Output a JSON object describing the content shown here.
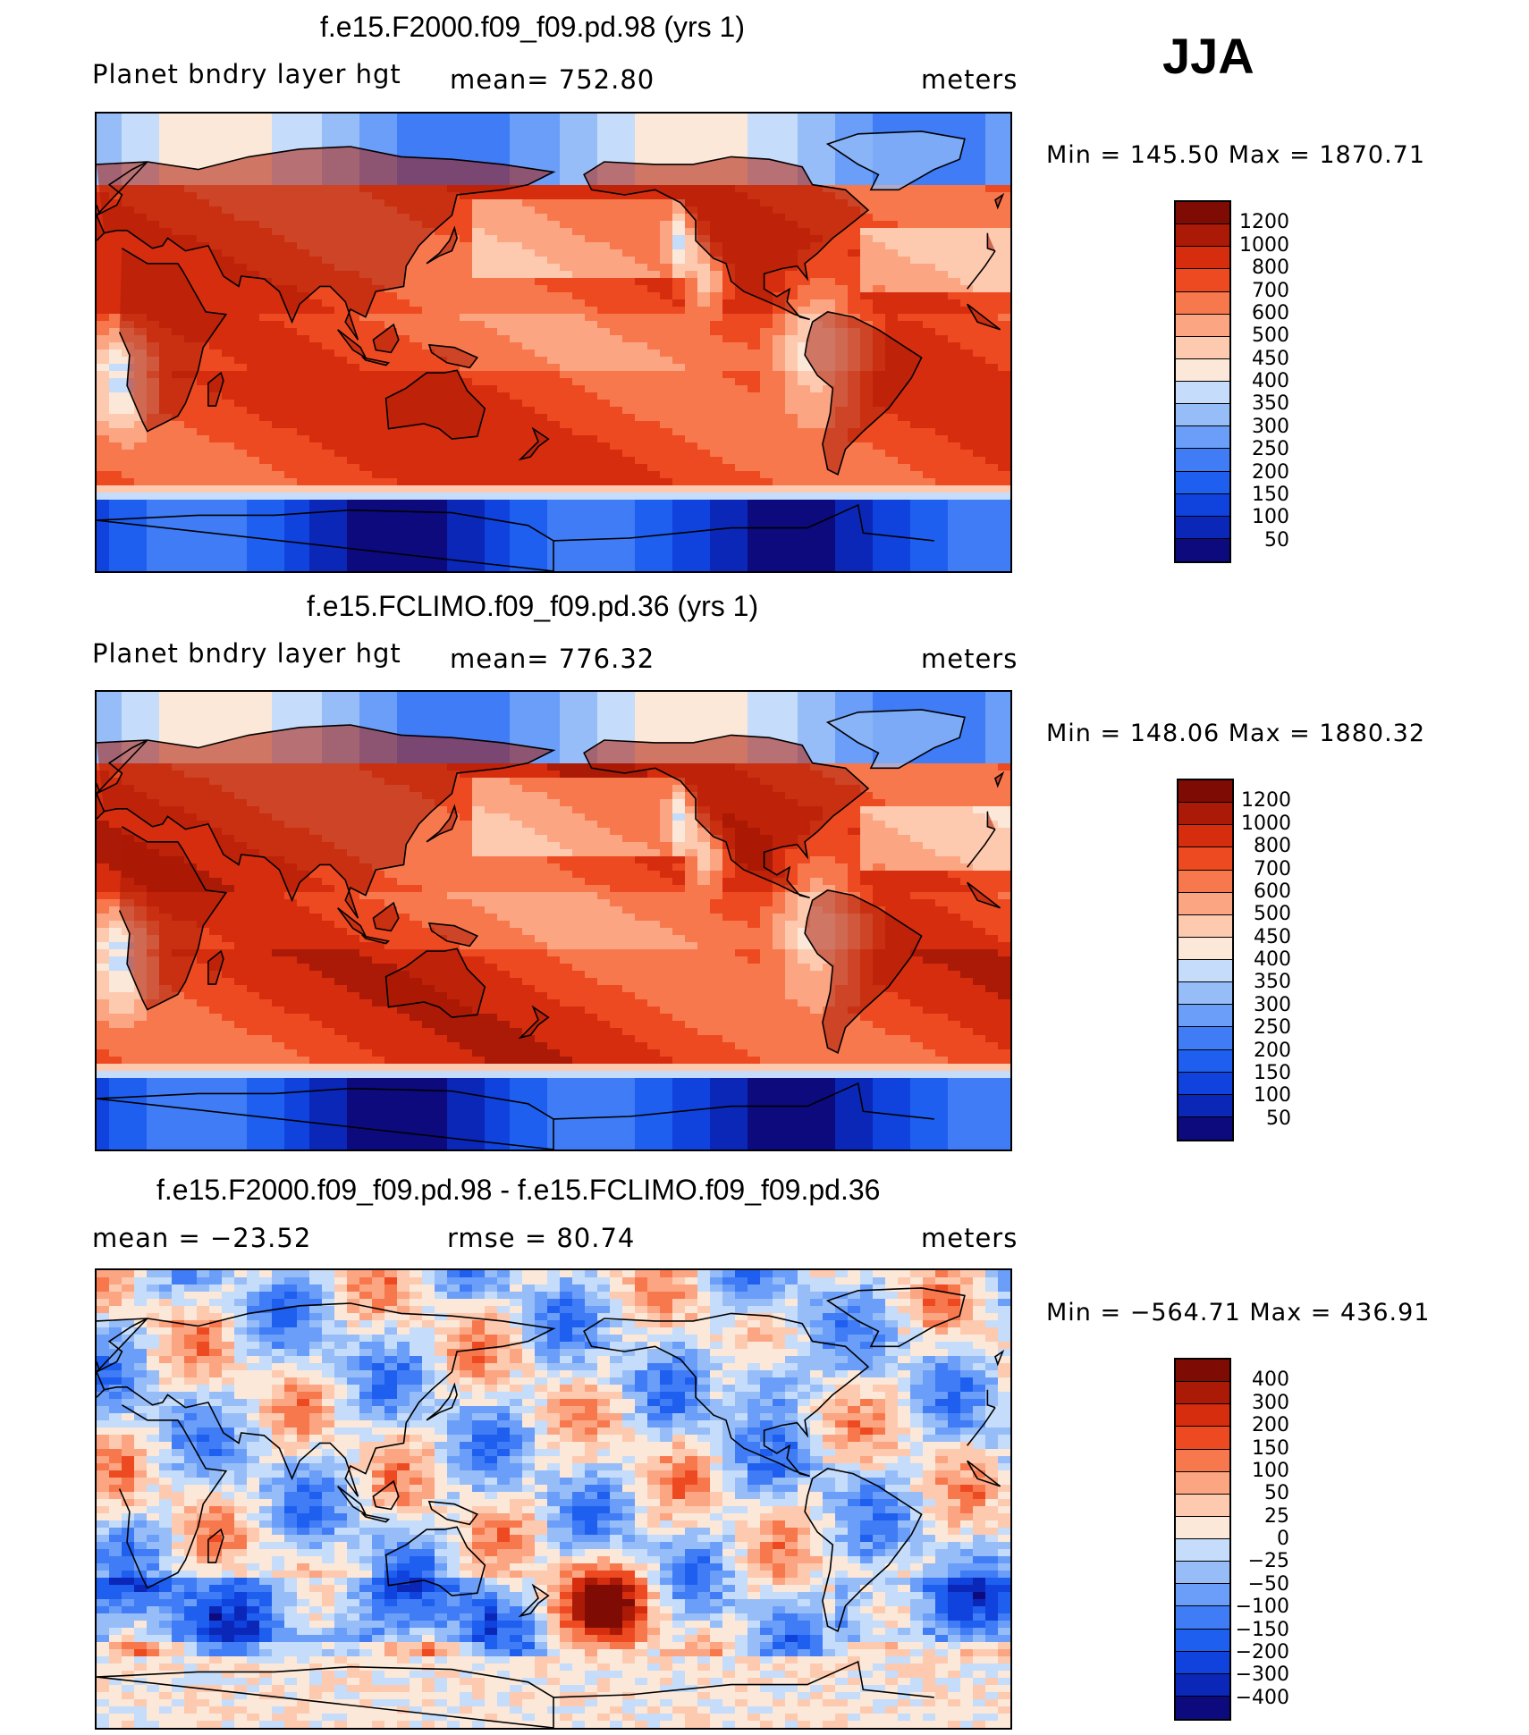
{
  "season": "JJA",
  "colors": {
    "seq_palette": [
      "#0c0a7c",
      "#0b27b8",
      "#1043dd",
      "#1f5fef",
      "#3f7cf5",
      "#6a9ef8",
      "#97bdf8",
      "#c5dcfa",
      "#fbe8d8",
      "#fdcab0",
      "#fba582",
      "#f8784e",
      "#ee4a21",
      "#d62d0f",
      "#ab1a06",
      "#7e0c04"
    ],
    "diff_palette": [
      "#0c0a7c",
      "#0b27b8",
      "#1043dd",
      "#1f5fef",
      "#3f7cf5",
      "#6a9ef8",
      "#97bdf8",
      "#c5dcfa",
      "#fbe8d8",
      "#fdcab0",
      "#fba582",
      "#f8784e",
      "#ee4a21",
      "#d62d0f",
      "#ab1a06",
      "#7e0c04"
    ],
    "coast": "#000000"
  },
  "panels": [
    {
      "title": "f.e15.F2000.f09_f09.pd.98 (yrs 1)",
      "left_label": "Planet bndry layer hgt",
      "center_label": "mean= 752.80",
      "units": "meters",
      "minmax": "Min = 145.50 Max = 1870.71",
      "colorbar_labels": [
        "1200",
        "1000",
        "800",
        "700",
        "600",
        "500",
        "450",
        "400",
        "350",
        "300",
        "250",
        "200",
        "150",
        "100",
        "50"
      ],
      "palette": "seq",
      "map_field": "pblh_a"
    },
    {
      "title": "f.e15.FCLIMO.f09_f09.pd.36 (yrs 1)",
      "left_label": "Planet bndry layer hgt",
      "center_label": "mean= 776.32",
      "units": "meters",
      "minmax": "Min = 148.06 Max = 1880.32",
      "colorbar_labels": [
        "1200",
        "1000",
        "800",
        "700",
        "600",
        "500",
        "450",
        "400",
        "350",
        "300",
        "250",
        "200",
        "150",
        "100",
        "50"
      ],
      "palette": "seq",
      "map_field": "pblh_b"
    },
    {
      "title": "f.e15.F2000.f09_f09.pd.98 - f.e15.FCLIMO.f09_f09.pd.36",
      "left_label": "mean = −23.52",
      "center_label": "rmse =  80.74",
      "units": "meters",
      "minmax": "Min = −564.71 Max = 436.91",
      "colorbar_labels": [
        "400",
        "300",
        "200",
        "150",
        "100",
        "50",
        "25",
        "0",
        "−25",
        "−50",
        "−100",
        "−150",
        "−200",
        "−300",
        "−400"
      ],
      "palette": "diff",
      "map_field": "pblh_diff"
    }
  ],
  "chart_data": [
    {
      "type": "heatmap",
      "title": "f.e15.F2000.f09_f09.pd.98 (yrs 1)",
      "variable": "Planet bndry layer hgt",
      "units": "meters",
      "mean": 752.8,
      "min": 145.5,
      "max": 1870.71,
      "contour_levels": [
        50,
        100,
        150,
        200,
        250,
        300,
        350,
        400,
        450,
        500,
        600,
        700,
        800,
        1000,
        1200
      ],
      "projection": "cylindrical equidistant, centered 180"
    },
    {
      "type": "heatmap",
      "title": "f.e15.FCLIMO.f09_f09.pd.36 (yrs 1)",
      "variable": "Planet bndry layer hgt",
      "units": "meters",
      "mean": 776.32,
      "min": 148.06,
      "max": 1880.32,
      "contour_levels": [
        50,
        100,
        150,
        200,
        250,
        300,
        350,
        400,
        450,
        500,
        600,
        700,
        800,
        1000,
        1200
      ],
      "projection": "cylindrical equidistant, centered 180"
    },
    {
      "type": "heatmap",
      "title": "f.e15.F2000.f09_f09.pd.98 - f.e15.FCLIMO.f09_f09.pd.36",
      "units": "meters",
      "mean": -23.52,
      "rmse": 80.74,
      "min": -564.71,
      "max": 436.91,
      "contour_levels": [
        -400,
        -300,
        -200,
        -150,
        -100,
        -50,
        -25,
        0,
        25,
        50,
        100,
        150,
        200,
        300,
        400
      ],
      "projection": "cylindrical equidistant, centered 180"
    }
  ]
}
